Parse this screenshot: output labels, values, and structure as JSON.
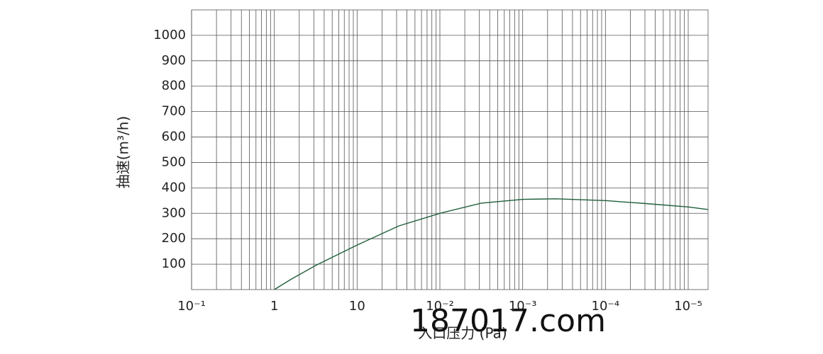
{
  "chart_data": {
    "type": "line",
    "x_label": "入口压力 (Pa)",
    "y_label": "抽速(m³/h)",
    "watermark": "187017.com",
    "xlim": [
      0,
      6.24
    ],
    "ylim": [
      0,
      1100
    ],
    "xticks": [
      {
        "value": 0,
        "label": "10⁻¹"
      },
      {
        "value": 1,
        "label": "1"
      },
      {
        "value": 2,
        "label": "10"
      },
      {
        "value": 3,
        "label": "10⁻²"
      },
      {
        "value": 4,
        "label": "10⁻³"
      },
      {
        "value": 5,
        "label": "10⁻⁴"
      },
      {
        "value": 6,
        "label": "10⁻⁵"
      }
    ],
    "yticks": [
      100,
      200,
      300,
      400,
      500,
      600,
      700,
      800,
      900,
      1000
    ],
    "grid": true,
    "minor_grid": true,
    "series": [
      {
        "color": "#1f5e3a",
        "x": [
          1,
          1.2,
          1.5,
          2,
          2.5,
          3,
          3.5,
          4,
          4.4,
          5,
          5.5,
          6,
          6.24
        ],
        "values": [
          0,
          40,
          95,
          175,
          250,
          300,
          340,
          355,
          357,
          350,
          338,
          325,
          315
        ]
      }
    ]
  }
}
